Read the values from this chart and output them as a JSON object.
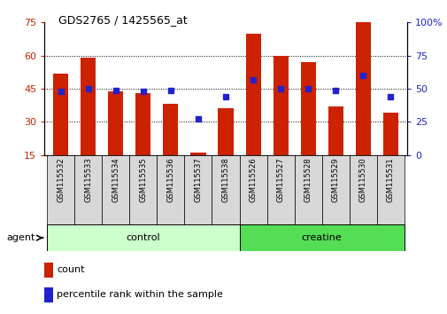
{
  "title": "GDS2765 / 1425565_at",
  "samples": [
    "GSM115532",
    "GSM115533",
    "GSM115534",
    "GSM115535",
    "GSM115536",
    "GSM115537",
    "GSM115538",
    "GSM115526",
    "GSM115527",
    "GSM115528",
    "GSM115529",
    "GSM115530",
    "GSM115531"
  ],
  "counts": [
    52,
    59,
    44,
    43,
    38,
    16,
    36,
    70,
    60,
    57,
    37,
    75,
    34
  ],
  "percentiles": [
    48,
    50,
    49,
    48,
    49,
    27,
    44,
    57,
    50,
    50,
    49,
    60,
    44
  ],
  "baseline": 15,
  "ymin": 15,
  "ymax": 75,
  "yticks_left": [
    15,
    30,
    45,
    60,
    75
  ],
  "yticks_right": [
    0,
    25,
    50,
    75,
    100
  ],
  "groups": [
    {
      "label": "control",
      "start": 0,
      "end": 7,
      "color": "#ccffcc"
    },
    {
      "label": "creatine",
      "start": 7,
      "end": 13,
      "color": "#55dd55"
    }
  ],
  "bar_color": "#cc2200",
  "marker_color": "#2222cc",
  "agent_label": "agent",
  "legend_count": "count",
  "legend_percentile": "percentile rank within the sample"
}
